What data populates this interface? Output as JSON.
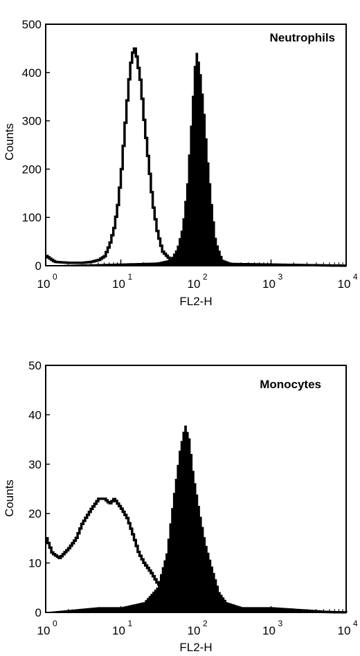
{
  "chart_data": [
    {
      "type": "histogram",
      "panel_label": "Neutrophils",
      "xlabel": "FL2-H",
      "ylabel": "Counts",
      "x_scale": "log",
      "xlim": [
        1,
        10000
      ],
      "ylim": [
        0,
        500
      ],
      "y_ticks": [
        0,
        100,
        200,
        300,
        400,
        500
      ],
      "x_ticks": [
        {
          "base": "10",
          "exp": "0"
        },
        {
          "base": "10",
          "exp": "1"
        },
        {
          "base": "10",
          "exp": "2"
        },
        {
          "base": "10",
          "exp": "3"
        },
        {
          "base": "10",
          "exp": "4"
        }
      ],
      "series": [
        {
          "style": "open",
          "color": "#000000",
          "points": [
            [
              1,
              20
            ],
            [
              1.3,
              8
            ],
            [
              2,
              6
            ],
            [
              3,
              6
            ],
            [
              4,
              8
            ],
            [
              5,
              12
            ],
            [
              6,
              20
            ],
            [
              7,
              45
            ],
            [
              8,
              80
            ],
            [
              9,
              130
            ],
            [
              10,
              200
            ],
            [
              11,
              280
            ],
            [
              12,
              350
            ],
            [
              13,
              410
            ],
            [
              14,
              440
            ],
            [
              15,
              450
            ],
            [
              16,
              430
            ],
            [
              18,
              380
            ],
            [
              20,
              300
            ],
            [
              23,
              210
            ],
            [
              26,
              130
            ],
            [
              30,
              70
            ],
            [
              35,
              30
            ],
            [
              45,
              12
            ],
            [
              70,
              6
            ],
            [
              200,
              4
            ],
            [
              10000,
              0
            ]
          ]
        },
        {
          "style": "filled",
          "color": "#000000",
          "points": [
            [
              1,
              0
            ],
            [
              10,
              4
            ],
            [
              30,
              6
            ],
            [
              45,
              12
            ],
            [
              55,
              35
            ],
            [
              65,
              80
            ],
            [
              75,
              170
            ],
            [
              85,
              300
            ],
            [
              95,
              420
            ],
            [
              100,
              440
            ],
            [
              110,
              410
            ],
            [
              125,
              320
            ],
            [
              140,
              220
            ],
            [
              160,
              120
            ],
            [
              180,
              50
            ],
            [
              220,
              12
            ],
            [
              300,
              4
            ],
            [
              1000,
              2
            ],
            [
              10000,
              0
            ]
          ]
        }
      ]
    },
    {
      "type": "histogram",
      "panel_label": "Monocytes",
      "xlabel": "FL2-H",
      "ylabel": "Counts",
      "x_scale": "log",
      "xlim": [
        1,
        10000
      ],
      "ylim": [
        0,
        50
      ],
      "y_ticks": [
        0,
        10,
        20,
        30,
        40,
        50
      ],
      "x_ticks": [
        {
          "base": "10",
          "exp": "0"
        },
        {
          "base": "10",
          "exp": "1"
        },
        {
          "base": "10",
          "exp": "2"
        },
        {
          "base": "10",
          "exp": "3"
        },
        {
          "base": "10",
          "exp": "4"
        }
      ],
      "series": [
        {
          "style": "open",
          "color": "#000000",
          "points": [
            [
              1,
              15
            ],
            [
              1.2,
              12
            ],
            [
              1.5,
              11
            ],
            [
              2,
              13
            ],
            [
              2.5,
              15
            ],
            [
              3,
              18
            ],
            [
              4,
              21
            ],
            [
              5,
              23
            ],
            [
              6,
              23
            ],
            [
              7,
              22
            ],
            [
              8,
              23
            ],
            [
              10,
              21
            ],
            [
              12,
              19
            ],
            [
              14,
              16
            ],
            [
              17,
              12
            ],
            [
              20,
              10
            ],
            [
              25,
              8
            ],
            [
              30,
              6
            ],
            [
              40,
              4
            ],
            [
              60,
              2
            ],
            [
              100,
              1
            ],
            [
              200,
              0.5
            ],
            [
              10000,
              0
            ]
          ]
        },
        {
          "style": "filled",
          "color": "#000000",
          "points": [
            [
              1,
              0
            ],
            [
              5,
              1
            ],
            [
              10,
              1
            ],
            [
              20,
              2
            ],
            [
              30,
              5
            ],
            [
              40,
              12
            ],
            [
              50,
              24
            ],
            [
              60,
              33
            ],
            [
              70,
              38
            ],
            [
              80,
              35
            ],
            [
              90,
              28
            ],
            [
              110,
              20
            ],
            [
              130,
              14
            ],
            [
              160,
              9
            ],
            [
              200,
              4
            ],
            [
              250,
              2
            ],
            [
              400,
              1
            ],
            [
              1000,
              1
            ],
            [
              10000,
              0
            ]
          ]
        }
      ]
    }
  ]
}
